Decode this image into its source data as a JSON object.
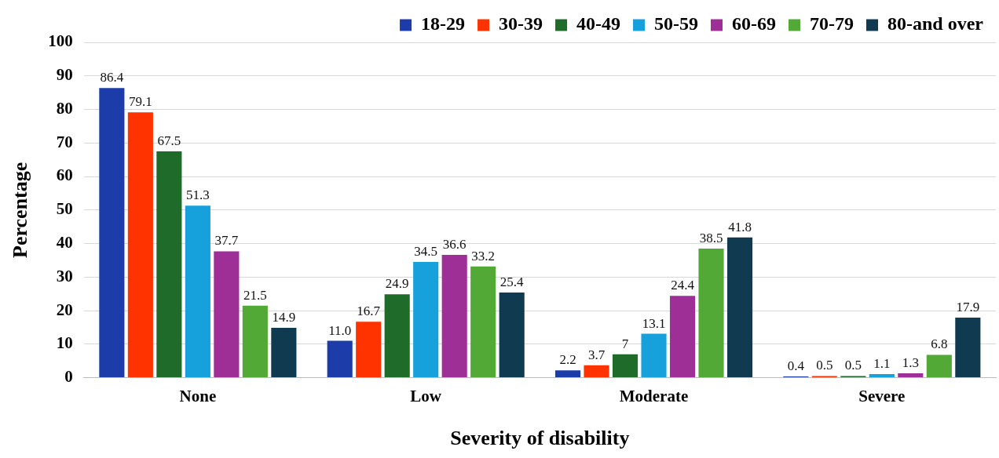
{
  "chart_data": {
    "type": "bar",
    "xlabel": "Severity of disability",
    "ylabel": "Percentage",
    "categories": [
      "None",
      "Low",
      "Moderate",
      "Severe"
    ],
    "series": [
      {
        "name": "18-29",
        "color": "#1c3caa",
        "values": [
          86.4,
          11.0,
          2.2,
          0.4
        ],
        "value_labels": [
          "86.4",
          "11.0",
          "2.2",
          "0.4"
        ]
      },
      {
        "name": "30-39",
        "color": "#ff3300",
        "values": [
          79.1,
          16.7,
          3.7,
          0.5
        ],
        "value_labels": [
          "79.1",
          "16.7",
          "3.7",
          "0.5"
        ]
      },
      {
        "name": "40-49",
        "color": "#1e6b2a",
        "values": [
          67.5,
          24.9,
          7,
          0.5
        ],
        "value_labels": [
          "67.5",
          "24.9",
          "7",
          "0.5"
        ]
      },
      {
        "name": "50-59",
        "color": "#16a0dc",
        "values": [
          51.3,
          34.5,
          13.1,
          1.1
        ],
        "value_labels": [
          "51.3",
          "34.5",
          "13.1",
          "1.1"
        ]
      },
      {
        "name": "60-69",
        "color": "#9e2f96",
        "values": [
          37.7,
          36.6,
          24.4,
          1.3
        ],
        "value_labels": [
          "37.7",
          "36.6",
          "24.4",
          "1.3"
        ]
      },
      {
        "name": "70-79",
        "color": "#52a936",
        "values": [
          21.5,
          33.2,
          38.5,
          6.8
        ],
        "value_labels": [
          "21.5",
          "33.2",
          "38.5",
          "6.8"
        ]
      },
      {
        "name": "80-and over",
        "color": "#0f3a50",
        "values": [
          14.9,
          25.4,
          41.8,
          17.9
        ],
        "value_labels": [
          "14.9",
          "25.4",
          "41.8",
          "17.9"
        ]
      }
    ],
    "ylim": [
      0,
      100
    ],
    "yticks": [
      0,
      10,
      20,
      30,
      40,
      50,
      60,
      70,
      80,
      90,
      100
    ],
    "grid": "y",
    "legend": "top right",
    "data_labels": true
  }
}
